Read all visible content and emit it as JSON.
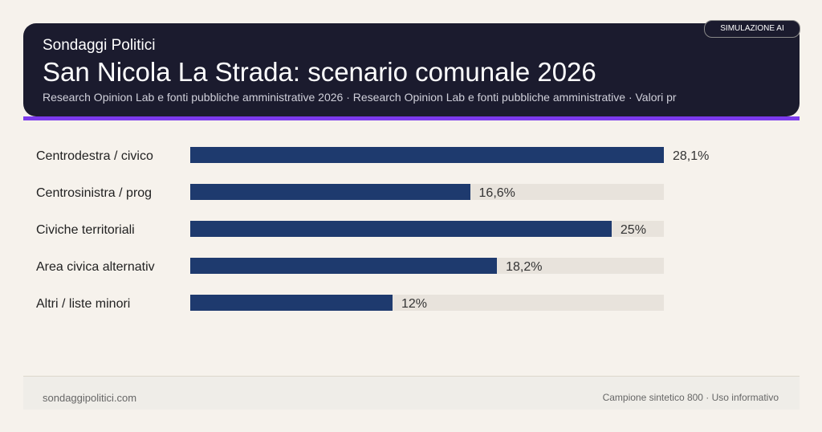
{
  "header": {
    "kicker": "Sondaggi Politici",
    "title": "San Nicola La Strada: scenario comunale 2026",
    "subtitle": "Research Opinion Lab e fonti pubbliche amministrative 2026 · Research Opinion Lab e fonti pubbliche amministrative · Valori pr",
    "badge": "SIMULAZIONE AI"
  },
  "chart_data": {
    "type": "bar",
    "orientation": "horizontal",
    "categories": [
      "Centrodestra / civico",
      "Centrosinistra / prog",
      "Civiche territoriali",
      "Area civica alternativ",
      "Altri / liste minori"
    ],
    "values": [
      28.1,
      16.6,
      25,
      18.2,
      12
    ],
    "value_labels": [
      "28,1%",
      "16,6%",
      "25%",
      "18,2%",
      "12%"
    ],
    "xlim": [
      0,
      28.1
    ],
    "bar_color": "#1e3a6e",
    "track_color": "#e8e3dc"
  },
  "footer": {
    "left": "sondaggipolitici.com",
    "right": "Campione sintetico 800 · Uso informativo"
  }
}
